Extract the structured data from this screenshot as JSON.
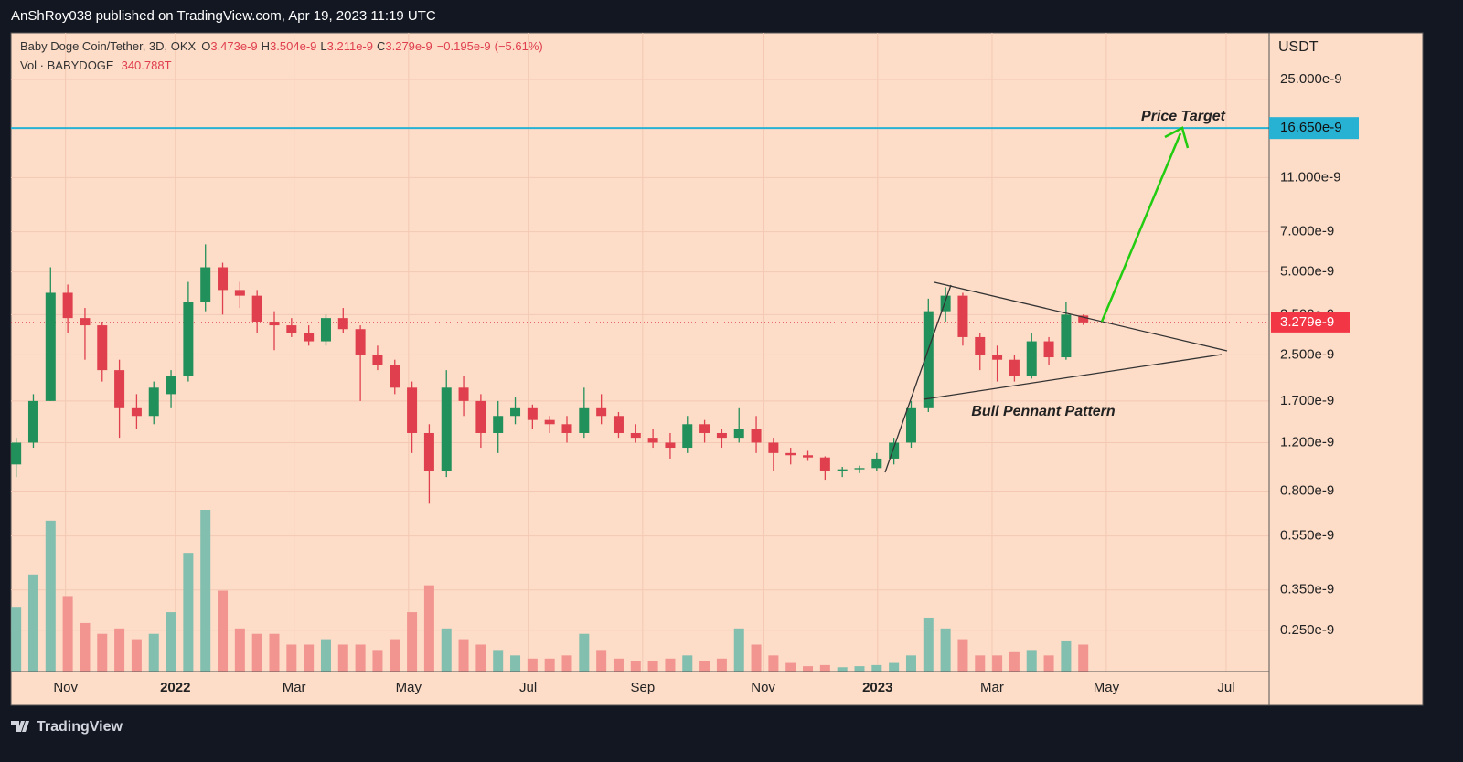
{
  "publish_line": "AnShRoy038 published on TradingView.com, Apr 19, 2023 11:19 UTC",
  "footer_brand": "TradingView",
  "chart_data": {
    "type": "candlestick",
    "title": "Baby Doge Coin/Tether, 3D, OKX",
    "ohlc_keys": {
      "open": "O",
      "high": "H",
      "low": "L",
      "close": "C"
    },
    "change": {
      "value": -1.95e-10,
      "label": "−0.195e-9"
    },
    "change_pct": {
      "value": -5.61,
      "label": "(−5.61%)"
    },
    "volume_title": "Vol · BABYDOGE",
    "volume_label": "340.788T",
    "price_unit": "USDT",
    "log_scale": true,
    "grid": true,
    "up_color": "#22905a",
    "down_color": "#e0404e",
    "volume_up_color": "#82bfae",
    "volume_down_color": "#f29590",
    "x": [
      0,
      1,
      2,
      3,
      4,
      5,
      6,
      7,
      8,
      9,
      10,
      11,
      12,
      13,
      14,
      15,
      16,
      17,
      18,
      19,
      20,
      21,
      22,
      23,
      24,
      25,
      26,
      27,
      28,
      29,
      30,
      31,
      32,
      33,
      34,
      35,
      36,
      37,
      38,
      39,
      40,
      41,
      42,
      43,
      44,
      45,
      46,
      47,
      48,
      49,
      50,
      51,
      52,
      53,
      54,
      55,
      56,
      57,
      58,
      59,
      60,
      61,
      62
    ],
    "open": [
      1e-09,
      1.2e-09,
      1.7e-09,
      4.2e-09,
      3.4e-09,
      3.2e-09,
      2.2e-09,
      1.6e-09,
      1.5e-09,
      1.8e-09,
      2.1e-09,
      3.9e-09,
      5.2e-09,
      4.3e-09,
      4.1e-09,
      3.3e-09,
      3.2e-09,
      3e-09,
      2.8e-09,
      3.4e-09,
      3.1e-09,
      2.5e-09,
      2.3e-09,
      1.9e-09,
      1.3e-09,
      9.5e-10,
      1.9e-09,
      1.7e-09,
      1.3e-09,
      1.5e-09,
      1.6e-09,
      1.45e-09,
      1.4e-09,
      1.3e-09,
      1.6e-09,
      1.5e-09,
      1.3e-09,
      1.25e-09,
      1.2e-09,
      1.15e-09,
      1.4e-09,
      1.3e-09,
      1.25e-09,
      1.35e-09,
      1.2e-09,
      1.1e-09,
      1.08e-09,
      1.06e-09,
      9.5e-10,
      9.6e-10,
      9.7e-10,
      1.05e-09,
      1.2e-09,
      1.6e-09,
      3.6e-09,
      4.1e-09,
      2.9e-09,
      2.5e-09,
      2.4e-09,
      2.1e-09,
      2.8e-09,
      2.45e-09,
      3.473e-09
    ],
    "high": [
      1.25e-09,
      1.8e-09,
      5.2e-09,
      4.5e-09,
      3.7e-09,
      3.3e-09,
      2.4e-09,
      1.8e-09,
      2e-09,
      2.2e-09,
      4.6e-09,
      6.3e-09,
      5.4e-09,
      4.6e-09,
      4.3e-09,
      3.6e-09,
      3.4e-09,
      3.2e-09,
      3.5e-09,
      3.7e-09,
      3.2e-09,
      2.7e-09,
      2.4e-09,
      2e-09,
      1.4e-09,
      2.2e-09,
      2.1e-09,
      1.8e-09,
      1.7e-09,
      1.75e-09,
      1.65e-09,
      1.5e-09,
      1.5e-09,
      1.9e-09,
      1.8e-09,
      1.55e-09,
      1.4e-09,
      1.35e-09,
      1.3e-09,
      1.5e-09,
      1.45e-09,
      1.35e-09,
      1.6e-09,
      1.5e-09,
      1.25e-09,
      1.15e-09,
      1.12e-09,
      1.07e-09,
      9.8e-10,
      9.9e-10,
      1.1e-09,
      1.25e-09,
      1.7e-09,
      4e-09,
      4.4e-09,
      4.2e-09,
      3e-09,
      2.7e-09,
      2.5e-09,
      3e-09,
      2.9e-09,
      3.9e-09,
      3.504e-09
    ],
    "low": [
      9e-10,
      1.15e-09,
      1.7e-09,
      3e-09,
      2.4e-09,
      2e-09,
      1.25e-09,
      1.35e-09,
      1.4e-09,
      1.6e-09,
      2e-09,
      3.6e-09,
      3.5e-09,
      3.7e-09,
      3e-09,
      2.6e-09,
      2.9e-09,
      2.7e-09,
      2.7e-09,
      3e-09,
      1.7e-09,
      2.2e-09,
      1.8e-09,
      1.1e-09,
      7.2e-10,
      9e-10,
      1.5e-09,
      1.15e-09,
      1.1e-09,
      1.4e-09,
      1.35e-09,
      1.3e-09,
      1.2e-09,
      1.25e-09,
      1.4e-09,
      1.25e-09,
      1.2e-09,
      1.15e-09,
      1.05e-09,
      1.1e-09,
      1.2e-09,
      1.15e-09,
      1.2e-09,
      1.1e-09,
      9.5e-10,
      1e-09,
      1.03e-09,
      8.8e-10,
      9e-10,
      9.3e-10,
      9.5e-10,
      1e-09,
      1.15e-09,
      1.55e-09,
      3.3e-09,
      2.7e-09,
      2.2e-09,
      2e-09,
      2e-09,
      2.05e-09,
      2.3e-09,
      2.4e-09,
      3.211e-09
    ],
    "close": [
      1.2e-09,
      1.7e-09,
      4.2e-09,
      3.4e-09,
      3.2e-09,
      2.2e-09,
      1.6e-09,
      1.5e-09,
      1.9e-09,
      2.1e-09,
      3.9e-09,
      5.2e-09,
      4.3e-09,
      4.1e-09,
      3.3e-09,
      3.2e-09,
      3e-09,
      2.8e-09,
      3.4e-09,
      3.1e-09,
      2.5e-09,
      2.3e-09,
      1.9e-09,
      1.3e-09,
      9.5e-10,
      1.9e-09,
      1.7e-09,
      1.3e-09,
      1.5e-09,
      1.6e-09,
      1.45e-09,
      1.4e-09,
      1.3e-09,
      1.6e-09,
      1.5e-09,
      1.3e-09,
      1.25e-09,
      1.2e-09,
      1.15e-09,
      1.4e-09,
      1.3e-09,
      1.25e-09,
      1.35e-09,
      1.2e-09,
      1.1e-09,
      1.08e-09,
      1.06e-09,
      9.5e-10,
      9.6e-10,
      9.7e-10,
      1.05e-09,
      1.2e-09,
      1.6e-09,
      3.6e-09,
      4.1e-09,
      2.9e-09,
      2.5e-09,
      2.4e-09,
      2.1e-09,
      2.8e-09,
      2.45e-09,
      3.5e-09,
      3.279e-09
    ],
    "volume": [
      818000000000000.0,
      1227000000000000.0,
      1908000000000000.0,
      954000000000000.0,
      613000000000000.0,
      477000000000000.0,
      545000000000000.0,
      409000000000000.0,
      477000000000000.0,
      750000000000000.0,
      1500000000000000.0,
      2045000000000000.0,
      1022000000000000.0,
      545000000000000.0,
      477000000000000.0,
      477000000000000.0,
      341000000000000.0,
      341000000000000.0,
      409000000000000.0,
      341000000000000.0,
      341000000000000.0,
      273000000000000.0,
      409000000000000.0,
      750000000000000.0,
      1090000000000000.0,
      545000000000000.0,
      409000000000000.0,
      341000000000000.0,
      273000000000000.0,
      204000000000000.0,
      164000000000000.0,
      164000000000000.0,
      204000000000000.0,
      477000000000000.0,
      273000000000000.0,
      164000000000000.0,
      136000000000000.0,
      136000000000000.0,
      164000000000000.0,
      204000000000000.0,
      136000000000000.0,
      164000000000000.0,
      545000000000000.0,
      341000000000000.0,
      204000000000000.0,
      109000000000000.0,
      68000000000000.0,
      82000000000000.0,
      55000000000000.0,
      68000000000000.0,
      82000000000000.0,
      109000000000000.0,
      204000000000000.0,
      682000000000000.0,
      545000000000000.0,
      409000000000000.0,
      204000000000000.0,
      204000000000000.0,
      245000000000000.0,
      273000000000000.0,
      204000000000000.0,
      382000000000000.0,
      340788000000000
    ],
    "xlim": [
      -0.3,
      72.8
    ],
    "xticks": [
      {
        "value": 2.87,
        "label": "Nov"
      },
      {
        "value": 9.25,
        "label": "2022"
      },
      {
        "value": 16.15,
        "label": "Mar"
      },
      {
        "value": 22.8,
        "label": "May"
      },
      {
        "value": 29.75,
        "label": "Jul"
      },
      {
        "value": 36.4,
        "label": "Sep"
      },
      {
        "value": 43.4,
        "label": "Nov"
      },
      {
        "value": 50.05,
        "label": "2023"
      },
      {
        "value": 56.7,
        "label": "Mar"
      },
      {
        "value": 63.34,
        "label": "May"
      },
      {
        "value": 70.3,
        "label": "Jul"
      }
    ],
    "ylim": [
      1.77e-10,
      3.69e-08
    ],
    "yticks": [
      {
        "value": 2.5e-08,
        "label": "25.000e-9"
      },
      {
        "value": 1.1e-08,
        "label": "11.000e-9"
      },
      {
        "value": 7e-09,
        "label": "7.000e-9"
      },
      {
        "value": 5e-09,
        "label": "5.000e-9"
      },
      {
        "value": 3.5e-09,
        "label": "3.500e-9"
      },
      {
        "value": 2.5e-09,
        "label": "2.500e-9"
      },
      {
        "value": 1.7e-09,
        "label": "1.700e-9"
      },
      {
        "value": 1.2e-09,
        "label": "1.200e-9"
      },
      {
        "value": 8e-10,
        "label": "0.800e-9"
      },
      {
        "value": 5.5e-10,
        "label": "0.550e-9"
      },
      {
        "value": 3.5e-10,
        "label": "0.350e-9"
      },
      {
        "value": 2.5e-10,
        "label": "0.250e-9"
      }
    ],
    "target": {
      "value": 1.665e-08,
      "label": "16.650e-9",
      "color": "#27b2d3"
    },
    "annotations": [
      "Price Target",
      "Bull Pennant Pattern"
    ]
  }
}
